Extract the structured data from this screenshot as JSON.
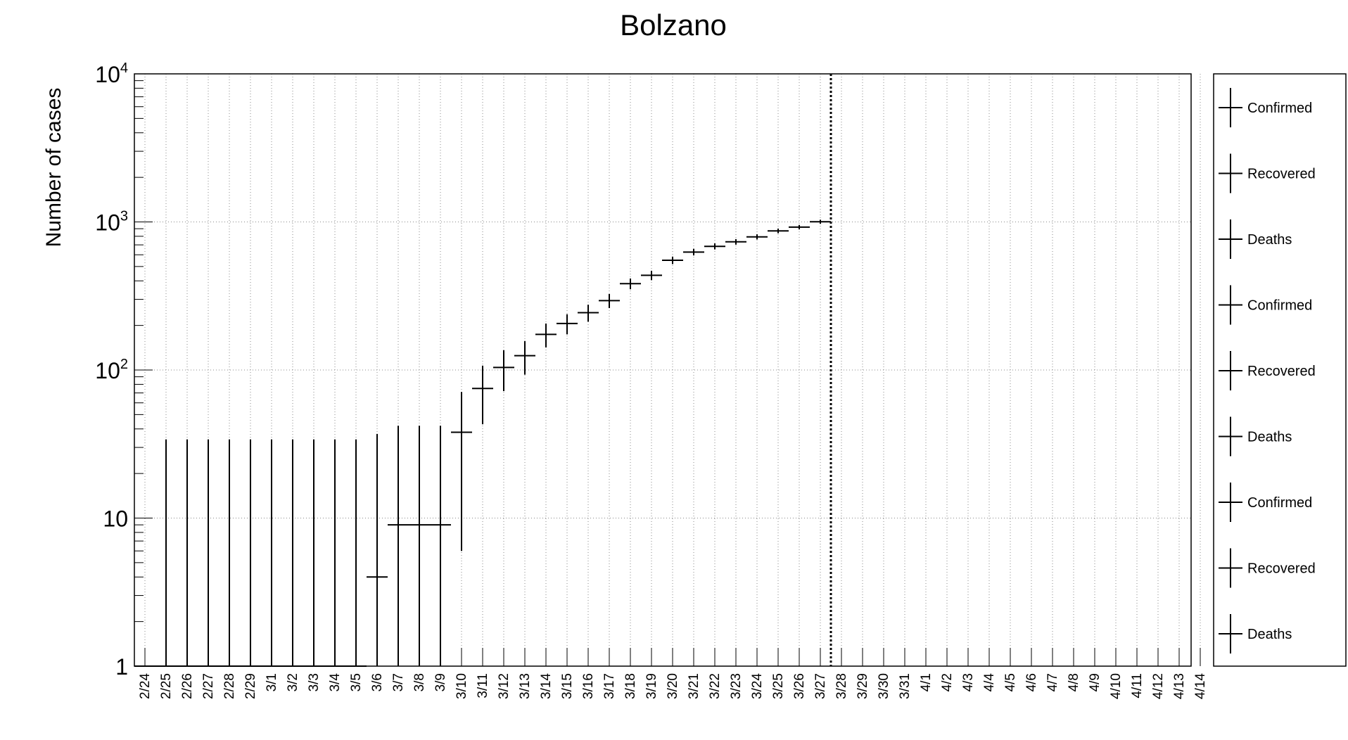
{
  "chart_data": {
    "type": "scatter",
    "title": "Bolzano",
    "xlabel": "",
    "ylabel": "Number of cases",
    "y_scale": "log",
    "ylim": [
      1,
      10000
    ],
    "y_ticks": [
      {
        "base": "1",
        "exp": ""
      },
      {
        "base": "10",
        "exp": ""
      },
      {
        "base": "10",
        "exp": "2"
      },
      {
        "base": "10",
        "exp": "3"
      },
      {
        "base": "10",
        "exp": "4"
      }
    ],
    "grid": true,
    "legend_position": "right",
    "categories": [
      "2/24",
      "2/25",
      "2/26",
      "2/27",
      "2/28",
      "2/29",
      "3/1",
      "3/2",
      "3/3",
      "3/4",
      "3/5",
      "3/6",
      "3/7",
      "3/8",
      "3/9",
      "3/10",
      "3/11",
      "3/12",
      "3/13",
      "3/14",
      "3/15",
      "3/16",
      "3/17",
      "3/18",
      "3/19",
      "3/20",
      "3/21",
      "3/22",
      "3/23",
      "3/24",
      "3/25",
      "3/26",
      "3/27",
      "3/28",
      "3/29",
      "3/30",
      "3/31",
      "4/1",
      "4/2",
      "4/3",
      "4/4",
      "4/5",
      "4/6",
      "4/7",
      "4/8",
      "4/9",
      "4/10",
      "4/11",
      "4/12",
      "4/13",
      "4/14"
    ],
    "series": [
      {
        "name": "Confirmed",
        "color": "#000000",
        "points": [
          {
            "x": "2/24",
            "y": 1,
            "y_low": 1,
            "y_high": 1
          },
          {
            "x": "2/25",
            "y": 1,
            "y_low": 1,
            "y_high": 34
          },
          {
            "x": "2/26",
            "y": 1,
            "y_low": 1,
            "y_high": 34
          },
          {
            "x": "2/27",
            "y": 1,
            "y_low": 1,
            "y_high": 34
          },
          {
            "x": "2/28",
            "y": 1,
            "y_low": 1,
            "y_high": 34
          },
          {
            "x": "2/29",
            "y": 1,
            "y_low": 1,
            "y_high": 34
          },
          {
            "x": "3/1",
            "y": 1,
            "y_low": 1,
            "y_high": 34
          },
          {
            "x": "3/2",
            "y": 1,
            "y_low": 1,
            "y_high": 34
          },
          {
            "x": "3/3",
            "y": 1,
            "y_low": 1,
            "y_high": 34
          },
          {
            "x": "3/4",
            "y": 1,
            "y_low": 1,
            "y_high": 34
          },
          {
            "x": "3/5",
            "y": 1,
            "y_low": 1,
            "y_high": 34
          },
          {
            "x": "3/6",
            "y": 4,
            "y_low": 1,
            "y_high": 37
          },
          {
            "x": "3/7",
            "y": 9,
            "y_low": 1,
            "y_high": 42
          },
          {
            "x": "3/8",
            "y": 9,
            "y_low": 1,
            "y_high": 42
          },
          {
            "x": "3/9",
            "y": 9,
            "y_low": 1,
            "y_high": 42
          },
          {
            "x": "3/10",
            "y": 38,
            "y_low": 6,
            "y_high": 71
          },
          {
            "x": "3/11",
            "y": 75,
            "y_low": 43,
            "y_high": 107
          },
          {
            "x": "3/12",
            "y": 104,
            "y_low": 72,
            "y_high": 136
          },
          {
            "x": "3/13",
            "y": 125,
            "y_low": 93,
            "y_high": 157
          },
          {
            "x": "3/14",
            "y": 174,
            "y_low": 142,
            "y_high": 206
          },
          {
            "x": "3/15",
            "y": 206,
            "y_low": 174,
            "y_high": 238
          },
          {
            "x": "3/16",
            "y": 244,
            "y_low": 212,
            "y_high": 276
          },
          {
            "x": "3/17",
            "y": 294,
            "y_low": 262,
            "y_high": 326
          },
          {
            "x": "3/18",
            "y": 383,
            "y_low": 351,
            "y_high": 415
          },
          {
            "x": "3/19",
            "y": 436,
            "y_low": 404,
            "y_high": 468
          },
          {
            "x": "3/20",
            "y": 551,
            "y_low": 519,
            "y_high": 583
          },
          {
            "x": "3/21",
            "y": 626,
            "y_low": 594,
            "y_high": 658
          },
          {
            "x": "3/22",
            "y": 684,
            "y_low": 652,
            "y_high": 716
          },
          {
            "x": "3/23",
            "y": 734,
            "y_low": 702,
            "y_high": 766
          },
          {
            "x": "3/24",
            "y": 793,
            "y_low": 761,
            "y_high": 825
          },
          {
            "x": "3/25",
            "y": 870,
            "y_low": 838,
            "y_high": 902
          },
          {
            "x": "3/26",
            "y": 922,
            "y_low": 890,
            "y_high": 954
          },
          {
            "x": "3/27",
            "y": 1003,
            "y_low": 971,
            "y_high": 1035
          }
        ]
      }
    ],
    "vertical_marker": {
      "x": "3/28",
      "style": "dotted"
    },
    "legend": [
      "Confirmed",
      "Recovered",
      "Deaths",
      "Confirmed",
      "Recovered",
      "Deaths",
      "Confirmed",
      "Recovered",
      "Deaths"
    ]
  }
}
